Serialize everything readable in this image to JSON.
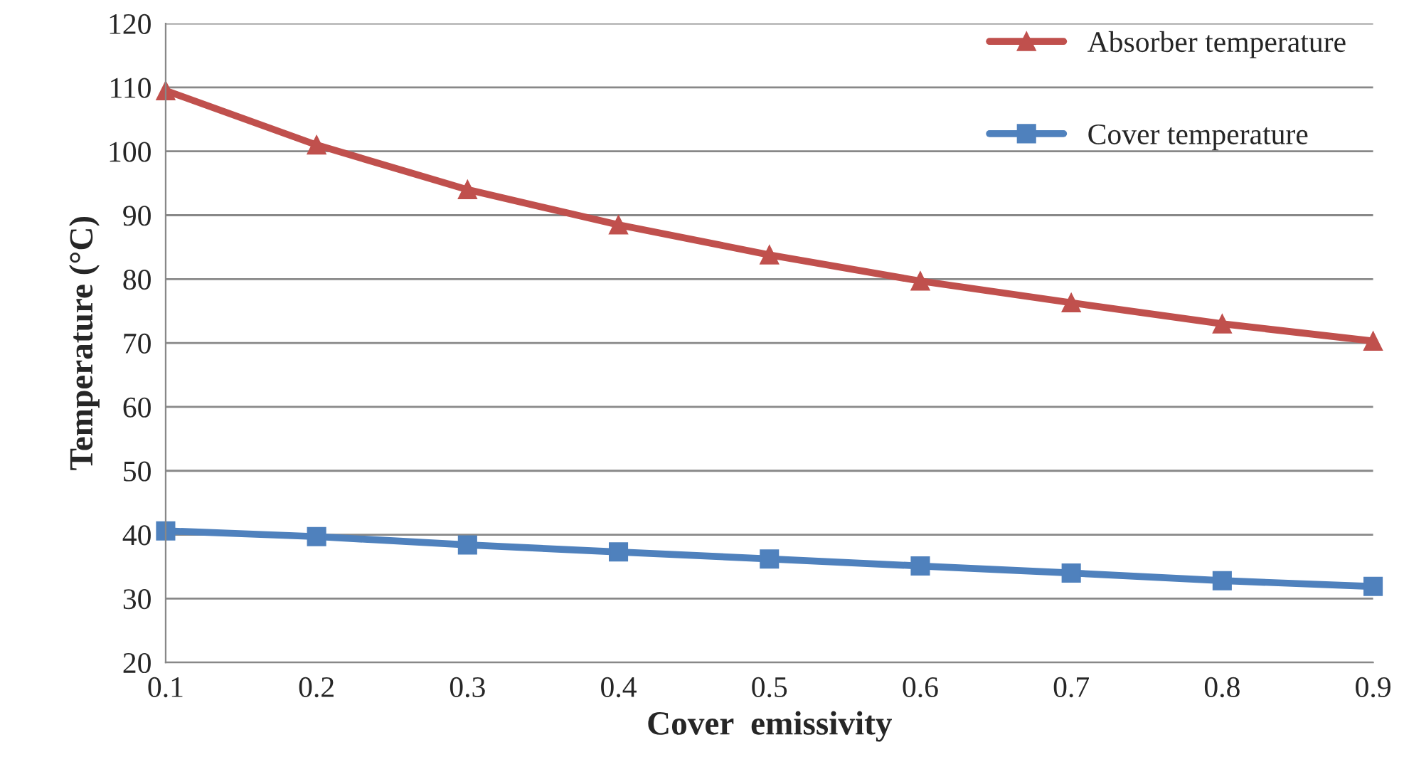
{
  "chart_data": {
    "type": "line",
    "xlabel": "Cover  emissivity",
    "ylabel": "Temperature (°C)",
    "x": [
      0.1,
      0.2,
      0.3,
      0.4,
      0.5,
      0.6,
      0.7,
      0.8,
      0.9
    ],
    "series": [
      {
        "name": "Absorber temperature",
        "color": "#c0504d",
        "marker": "triangle",
        "values": [
          109.5,
          101,
          94,
          88.5,
          83.8,
          79.7,
          76.3,
          73,
          70.3
        ]
      },
      {
        "name": "Cover temperature",
        "color": "#4f81bd",
        "marker": "square",
        "values": [
          40.6,
          39.7,
          38.4,
          37.3,
          36.2,
          35.1,
          34,
          32.8,
          31.9
        ]
      }
    ],
    "xlim": [
      0.1,
      0.9
    ],
    "xticks": [
      0.1,
      0.2,
      0.3,
      0.4,
      0.5,
      0.6,
      0.7,
      0.8,
      0.9
    ],
    "ylim": [
      20,
      120
    ],
    "yticks": [
      20,
      30,
      40,
      50,
      60,
      70,
      80,
      90,
      100,
      110,
      120
    ],
    "grid": "y",
    "legend": "top right",
    "line_style": "solid"
  }
}
